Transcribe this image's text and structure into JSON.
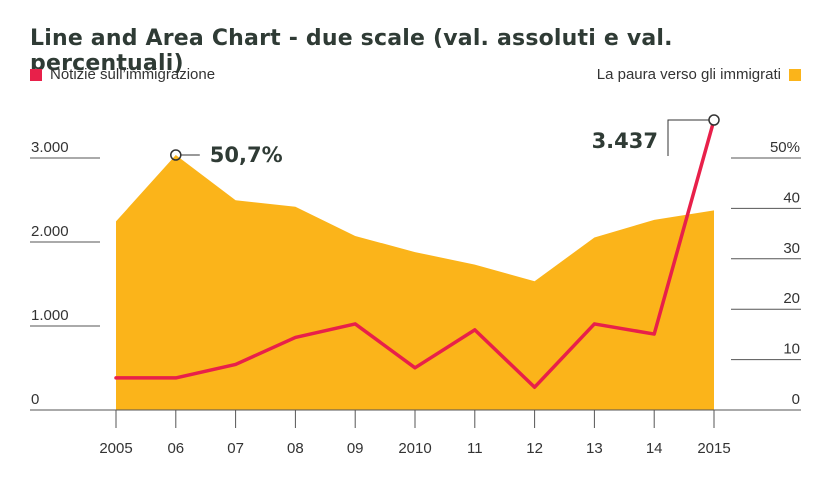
{
  "chart_data": {
    "type": "area",
    "title": "Line and Area Chart - due scale (val. assoluti e val. percentuali)",
    "legend": {
      "left": "Notizie sull’immigrazione",
      "right": "La paura verso gli immigrati",
      "placement": "top"
    },
    "x": [
      "2005",
      "06",
      "07",
      "08",
      "09",
      "2010",
      "11",
      "12",
      "13",
      "14",
      "2015"
    ],
    "area_series": {
      "name": "La paura verso gli immigrati",
      "color": "#fbb41a",
      "axis": "right",
      "x": [
        2005,
        2006,
        2007,
        2008,
        2009,
        2010,
        2011,
        2012,
        2013,
        2014,
        2015
      ],
      "values": [
        37.5,
        50.7,
        41.7,
        40.4,
        34.6,
        31.4,
        28.9,
        25.6,
        34.3,
        37.8,
        39.7
      ]
    },
    "line_series": {
      "name": "Notizie sull’immigrazione",
      "color": "#e8204a",
      "axis": "left",
      "x": [
        2005,
        2006,
        2007,
        2008,
        2009,
        2010,
        2011,
        2012,
        2013,
        2014,
        2015
      ],
      "values": [
        380,
        380,
        540,
        860,
        1020,
        500,
        950,
        270,
        1020,
        900,
        3437
      ]
    },
    "left_axis": {
      "ticks": [
        "0",
        "1.000",
        "2.000",
        "3.000"
      ],
      "tick_values": [
        0,
        1000,
        2000,
        3000
      ],
      "ylim": [
        0,
        3437
      ]
    },
    "right_axis": {
      "ticks": [
        "0",
        "10",
        "20",
        "30",
        "40",
        "50%"
      ],
      "tick_values": [
        0,
        10,
        20,
        30,
        40,
        50
      ],
      "ylim": [
        0,
        50.7
      ]
    },
    "annotations": [
      {
        "text": "50,7%",
        "series": "area",
        "index": 1
      },
      {
        "text": "3.437",
        "series": "line",
        "index": 10
      }
    ]
  }
}
